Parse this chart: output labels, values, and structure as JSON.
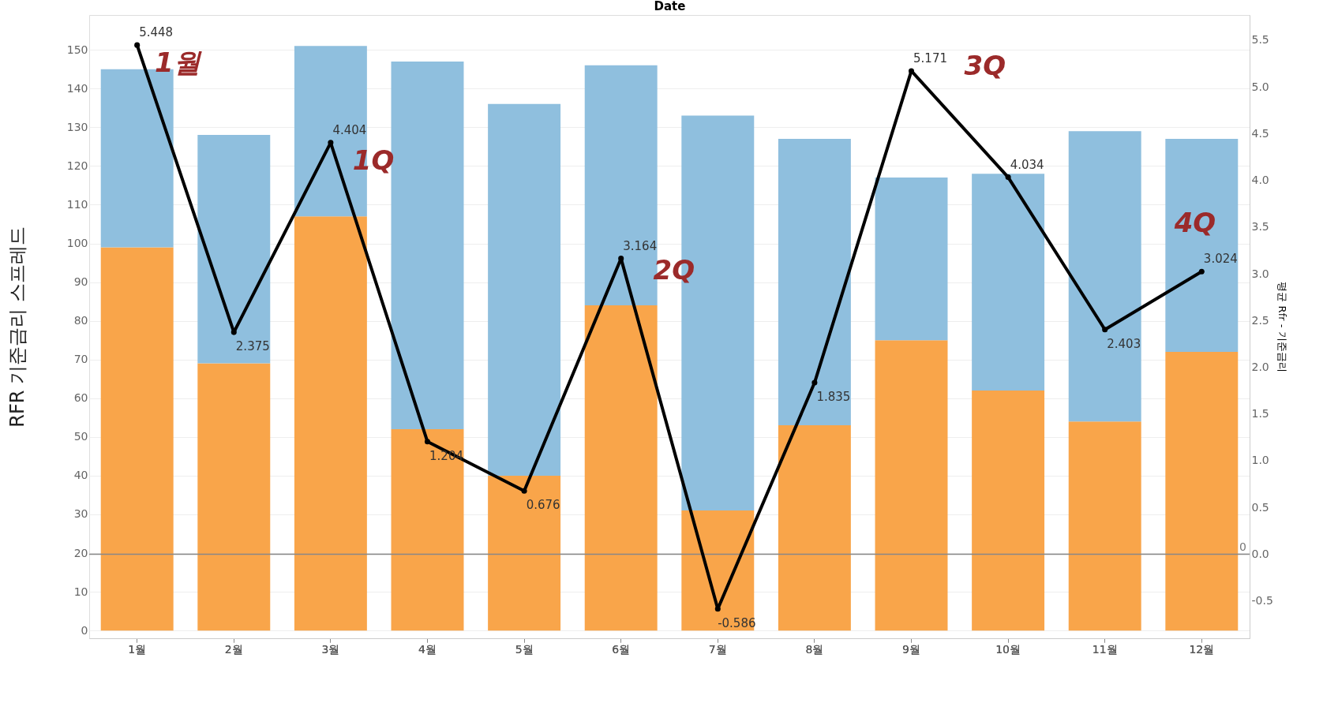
{
  "chart_data": {
    "type": "bar",
    "xlabel": "Date",
    "ylabel": "RFR 기준금리 스프레드",
    "y2label": "평균 Rfr - 기준금리",
    "categories": [
      "1월",
      "2월",
      "3월",
      "4월",
      "5월",
      "6월",
      "7월",
      "8월",
      "9월",
      "10월",
      "11월",
      "12월"
    ],
    "stacked": true,
    "series": [
      {
        "color": "#f9a54a",
        "values": [
          99,
          69,
          107,
          52,
          40,
          84,
          31,
          53,
          75,
          62,
          54,
          72
        ]
      },
      {
        "color": "#8fbfde",
        "values": [
          46,
          59,
          44,
          95,
          96,
          62,
          102,
          74,
          42,
          56,
          75,
          55
        ]
      },
      {
        "type": "line",
        "axis": "y2",
        "color": "#000000",
        "marker": "circle",
        "data_labels": true,
        "values": [
          5.448,
          2.375,
          4.404,
          1.204,
          0.676,
          3.164,
          -0.586,
          1.835,
          5.171,
          4.034,
          2.403,
          3.024
        ]
      }
    ],
    "ylim": [
      -2,
      159
    ],
    "yticks": [
      0,
      10,
      20,
      30,
      40,
      50,
      60,
      70,
      80,
      90,
      100,
      110,
      120,
      130,
      140,
      150
    ],
    "y2lim": [
      -0.9,
      5.77
    ],
    "y2ticks": [
      {
        "value": -0.5,
        "label": "-0.5"
      },
      {
        "value": 0,
        "label": "0.0"
      },
      {
        "value": 0.5,
        "label": "0.5"
      },
      {
        "value": 1,
        "label": "1.0"
      },
      {
        "value": 1.5,
        "label": "1.5"
      },
      {
        "value": 2,
        "label": "2.0"
      },
      {
        "value": 2.5,
        "label": "2.5"
      },
      {
        "value": 3,
        "label": "3.0"
      },
      {
        "value": 3.5,
        "label": "3.5"
      },
      {
        "value": 4,
        "label": "4.0"
      },
      {
        "value": 4.5,
        "label": "4.5"
      },
      {
        "value": 5,
        "label": "5.0"
      },
      {
        "value": 5.5,
        "label": "5.5"
      }
    ],
    "ref_lines": [
      {
        "axis": "y2",
        "value": 0,
        "label": "0",
        "color": "#888888"
      }
    ],
    "annotations": [
      "1월",
      "1Q",
      "2Q",
      "3Q",
      "4Q"
    ],
    "grid": "y",
    "legend": false
  }
}
